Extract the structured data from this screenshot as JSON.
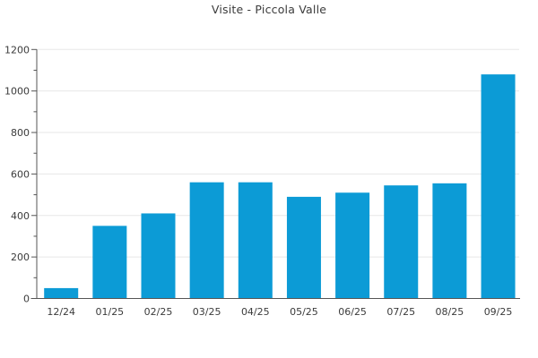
{
  "chart_data": {
    "type": "bar",
    "title": "Visite - Piccola Valle",
    "categories": [
      "12/24",
      "01/25",
      "02/25",
      "03/25",
      "04/25",
      "05/25",
      "06/25",
      "07/25",
      "08/25",
      "09/25"
    ],
    "values": [
      50,
      350,
      410,
      560,
      560,
      490,
      510,
      545,
      555,
      1080
    ],
    "xlabel": "",
    "ylabel": "",
    "ylim": [
      0,
      1200
    ],
    "y_major_step": 200,
    "y_minor_step": 100,
    "ytick_labels": [
      "0",
      "200",
      "400",
      "600",
      "800",
      "1000",
      "1200"
    ],
    "grid": "horizontal-major-only",
    "legend": "none",
    "colors": {
      "bar": "#0c9bd6",
      "axis": "#555555",
      "grid": "#e7e7e7",
      "text": "#3b3b3b",
      "background": "#ffffff"
    }
  }
}
